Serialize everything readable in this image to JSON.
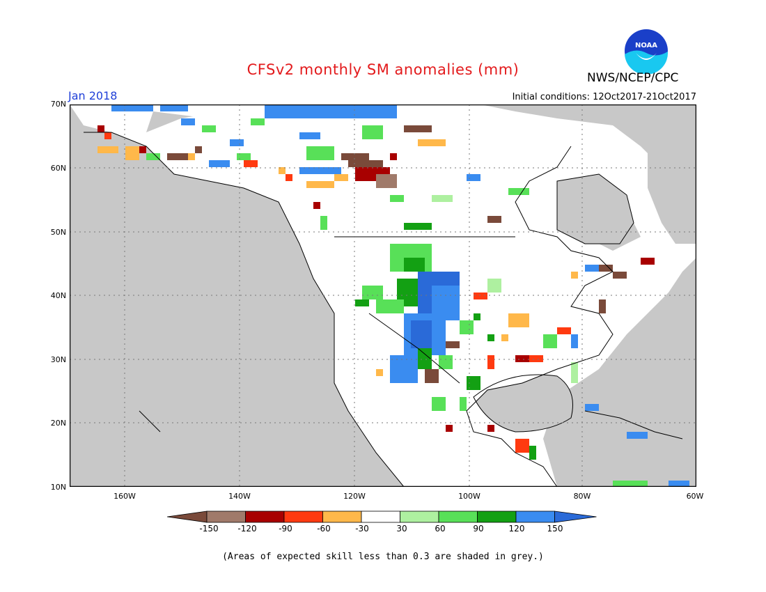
{
  "header": {
    "title": "CFSv2 monthly SM anomalies (mm)",
    "organization": "NWS/NCEP/CPC",
    "valid_month": "Jan 2018",
    "initial_conditions": "Initial conditions: 12Oct2017-21Oct2017",
    "logo_text": "NOAA"
  },
  "axes": {
    "lat_labels": [
      "70N",
      "60N",
      "50N",
      "40N",
      "30N",
      "20N",
      "10N"
    ],
    "lon_labels": [
      "160W",
      "140W",
      "120W",
      "100W",
      "80W",
      "60W"
    ]
  },
  "colorbar": {
    "tick_labels": [
      "-150",
      "-120",
      "-90",
      "-60",
      "-30",
      "30",
      "60",
      "90",
      "120",
      "150"
    ],
    "colors": [
      "#7a4a3a",
      "#a07a6a",
      "#a80000",
      "#ff3a10",
      "#ffb84a",
      "#ffffff",
      "#aef0a0",
      "#58e058",
      "#13a013",
      "#3a8cf0",
      "#2a6ad8"
    ],
    "units": "mm"
  },
  "map_style": {
    "low_skill_color": "#c8c8c8",
    "ocean_color": "#ffffff",
    "grid_color": "#777777"
  },
  "footnote": "(Areas of expected skill less than 0.3 are shaded in grey.)"
}
